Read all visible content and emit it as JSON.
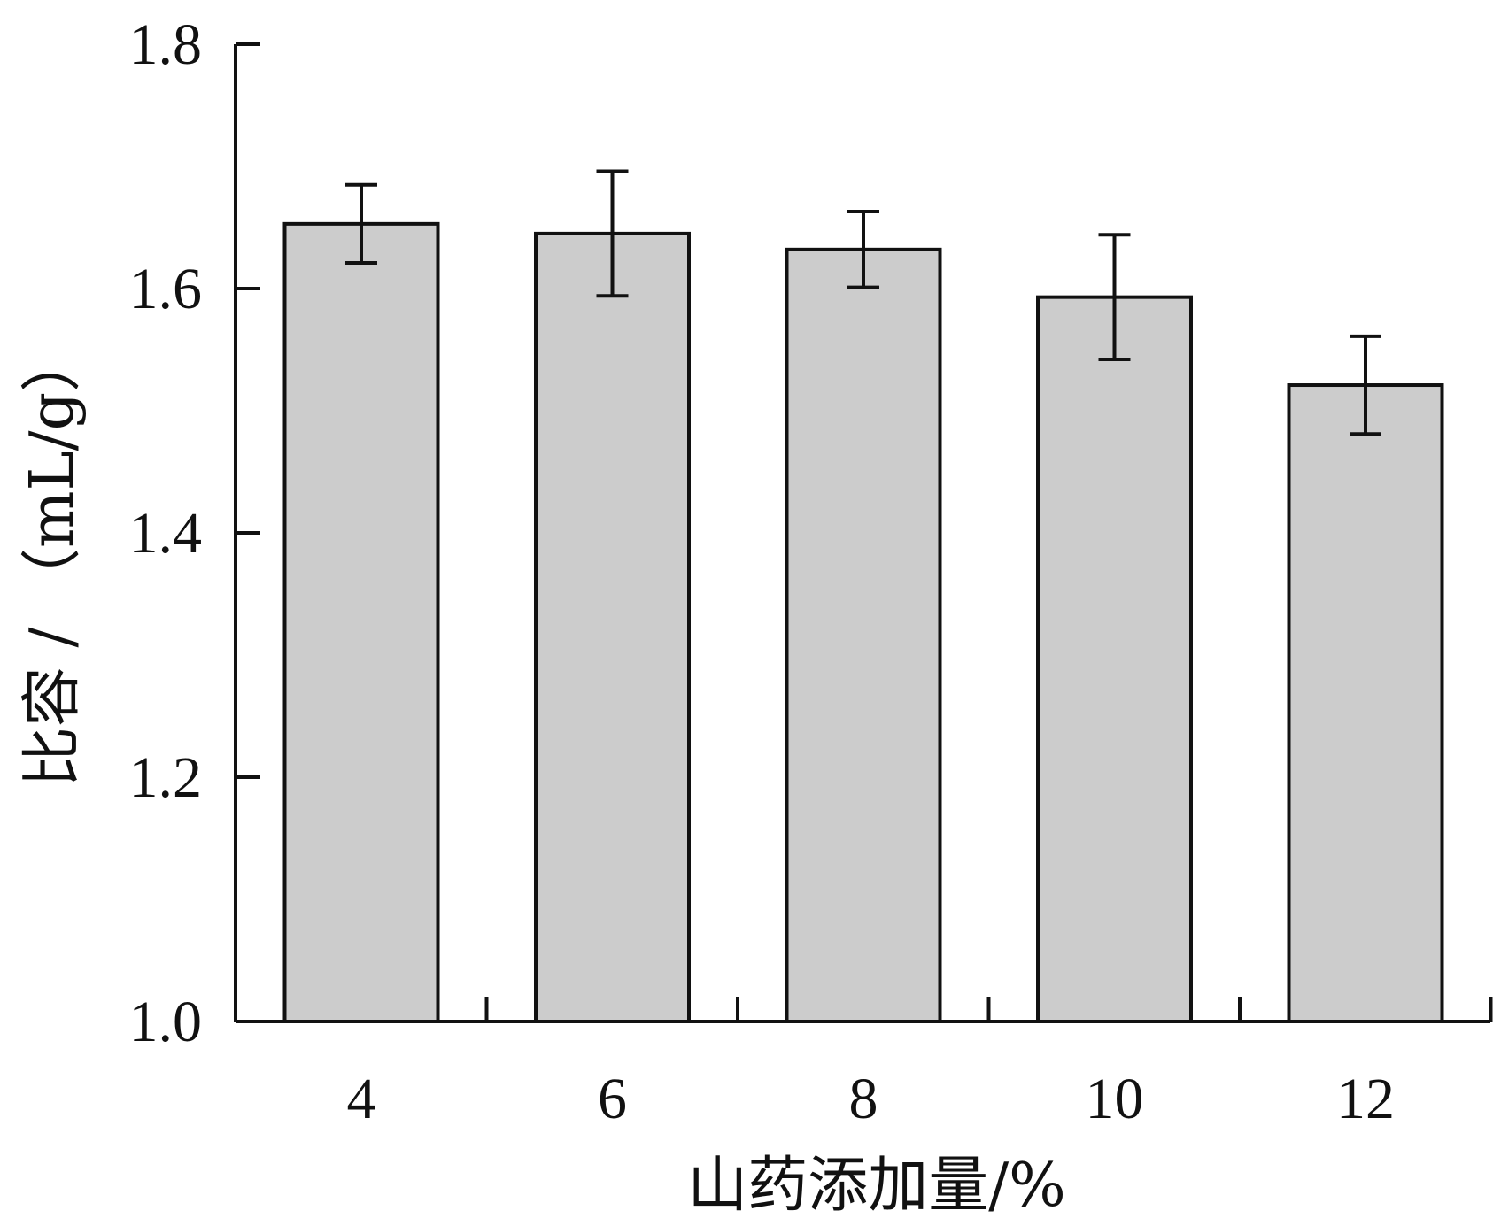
{
  "chart_data": {
    "type": "bar",
    "title": "",
    "xlabel": "山药添加量/%",
    "ylabel": "比容 / （mL/g）",
    "categories": [
      "4",
      "6",
      "8",
      "10",
      "12"
    ],
    "values": [
      1.653,
      1.645,
      1.632,
      1.593,
      1.521
    ],
    "error": [
      0.032,
      0.051,
      0.031,
      0.051,
      0.04
    ],
    "ylim": [
      1.0,
      1.8
    ],
    "yticks": [
      "1.0",
      "1.2",
      "1.4",
      "1.6",
      "1.8"
    ],
    "grid": false,
    "legend": "none",
    "colors": {
      "bar_fill": "#cccccc",
      "bar_stroke": "#111111",
      "axis": "#111111"
    }
  }
}
